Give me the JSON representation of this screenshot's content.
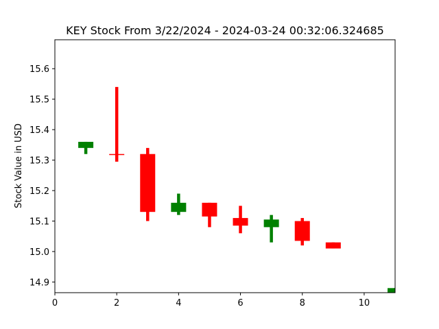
{
  "chart_data": {
    "type": "candlestick",
    "title": "KEY Stock From 3/22/2024 - 2024-03-24 00:32:06.324685",
    "xlabel": "",
    "ylabel": "Stock Value in USD",
    "xlim": [
      0,
      11
    ],
    "ylim": [
      14.865,
      15.695
    ],
    "xticks": [
      0,
      2,
      4,
      6,
      8,
      10
    ],
    "yticks": [
      14.9,
      15.0,
      15.1,
      15.2,
      15.3,
      15.4,
      15.5,
      15.6
    ],
    "grid": false,
    "colors": {
      "up": "#008000",
      "down": "#ff0000"
    },
    "candles": [
      {
        "x": 1,
        "open": 15.34,
        "close": 15.36,
        "high": 15.36,
        "low": 15.32
      },
      {
        "x": 2,
        "open": 15.32,
        "close": 15.317,
        "high": 15.54,
        "low": 15.295
      },
      {
        "x": 3,
        "open": 15.32,
        "close": 15.13,
        "high": 15.34,
        "low": 15.1
      },
      {
        "x": 4,
        "open": 15.13,
        "close": 15.16,
        "high": 15.19,
        "low": 15.12
      },
      {
        "x": 5,
        "open": 15.16,
        "close": 15.115,
        "high": 15.16,
        "low": 15.08
      },
      {
        "x": 6,
        "open": 15.11,
        "close": 15.085,
        "high": 15.15,
        "low": 15.06
      },
      {
        "x": 7,
        "open": 15.08,
        "close": 15.105,
        "high": 15.12,
        "low": 15.03
      },
      {
        "x": 8,
        "open": 15.1,
        "close": 15.035,
        "high": 15.11,
        "low": 15.02
      },
      {
        "x": 9,
        "open": 15.03,
        "close": 15.01,
        "high": 15.03,
        "low": 15.01
      },
      {
        "x": 11,
        "open": 14.86,
        "close": 14.88,
        "high": 14.88,
        "low": 14.86
      }
    ]
  }
}
